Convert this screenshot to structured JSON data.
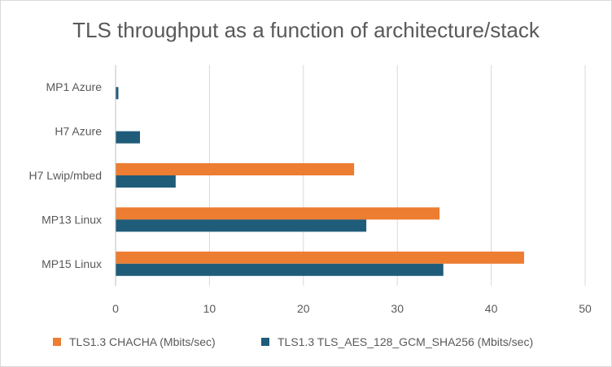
{
  "chart_data": {
    "type": "bar",
    "orientation": "horizontal",
    "title": "TLS throughput as a function of architecture/stack",
    "categories": [
      "MP15 Linux",
      "MP13 Linux",
      "H7 Lwip/mbed",
      "H7 Azure",
      "MP1 Azure"
    ],
    "series": [
      {
        "name": "TLS1.3 CHACHA (Mbits/sec)",
        "color": "#ED7D31",
        "values": [
          43.5,
          34.5,
          25.4,
          0,
          0
        ]
      },
      {
        "name": "TLS1.3 TLS_AES_128_GCM_SHA256 (Mbits/sec)",
        "color": "#1F5C7A",
        "values": [
          34.9,
          26.7,
          6.4,
          2.6,
          0.3
        ]
      }
    ],
    "xlim": [
      0,
      50
    ],
    "xticks": [
      "0",
      "10",
      "20",
      "30",
      "40",
      "50"
    ],
    "xlabel": "",
    "ylabel": "",
    "grid": true,
    "legend_position": "bottom"
  }
}
